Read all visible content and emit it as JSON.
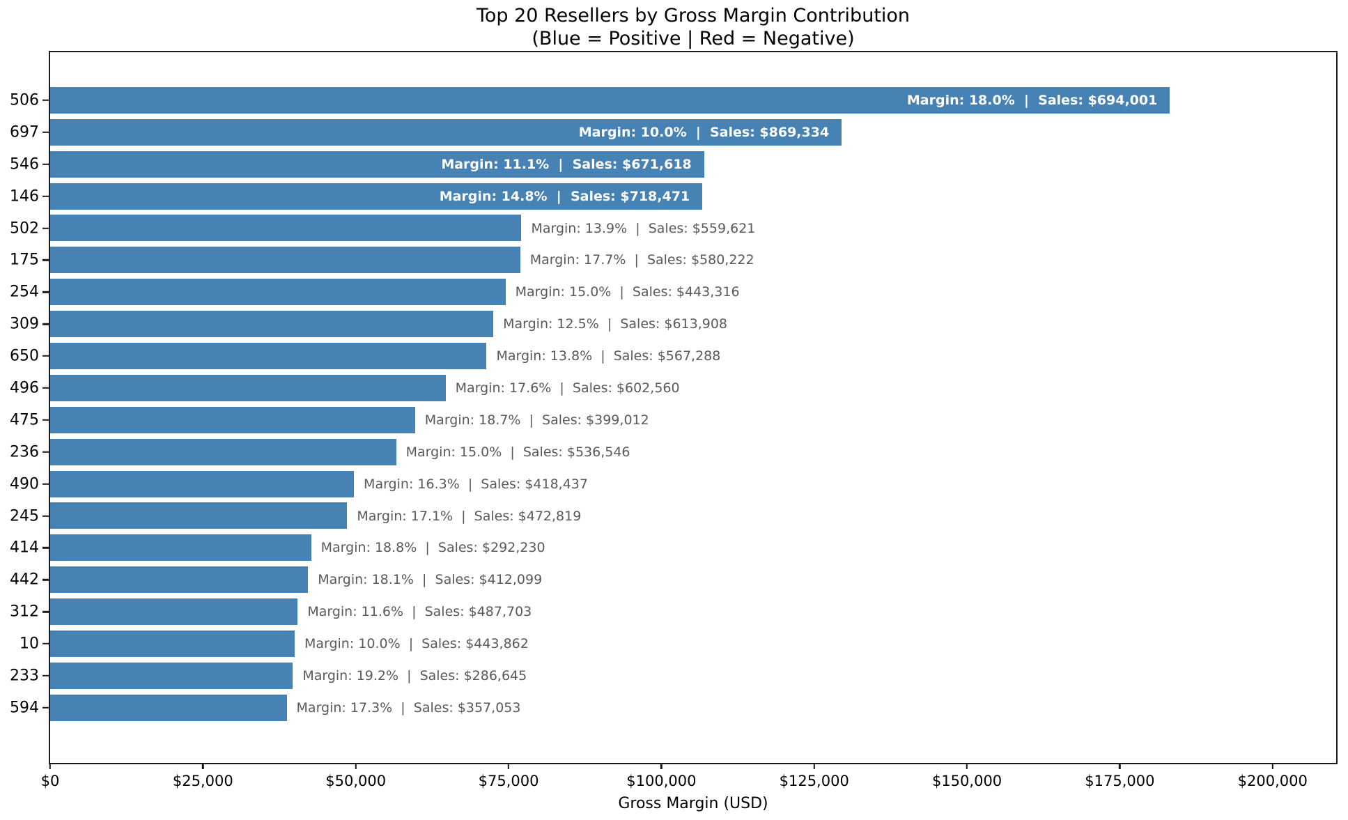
{
  "title": {
    "line1": "Top 20 Resellers by Gross Margin Contribution",
    "line2": "(Blue = Positive | Red = Negative)"
  },
  "colors": {
    "positive_bar": "#4682b4",
    "inside_label": "#ffffff",
    "outside_label": "#595959",
    "axis": "#1a1a1a"
  },
  "chart_data": {
    "type": "bar",
    "orientation": "horizontal",
    "title": "Top 20 Resellers by Gross Margin Contribution",
    "subtitle": "(Blue = Positive | Red = Negative)",
    "xlabel": "Gross Margin (USD)",
    "ylabel": "",
    "xlim": [
      0,
      210400
    ],
    "grid": false,
    "legend": false,
    "x_ticks": [
      {
        "value": 0,
        "label": "$0"
      },
      {
        "value": 25000,
        "label": "$25,000"
      },
      {
        "value": 50000,
        "label": "$50,000"
      },
      {
        "value": 75000,
        "label": "$75,000"
      },
      {
        "value": 100000,
        "label": "$100,000"
      },
      {
        "value": 125000,
        "label": "$125,000"
      },
      {
        "value": 150000,
        "label": "$150,000"
      },
      {
        "value": 175000,
        "label": "$175,000"
      },
      {
        "value": 200000,
        "label": "$200,000"
      }
    ],
    "label_format": "Margin: {margin_pct}  |  Sales: {sales}",
    "bars": [
      {
        "reseller_id": "506",
        "gross_margin": 183200,
        "margin_pct": "18.0%",
        "sales": "$694,001",
        "label_inside": true
      },
      {
        "reseller_id": "697",
        "gross_margin": 129500,
        "margin_pct": "10.0%",
        "sales": "$869,334",
        "label_inside": true
      },
      {
        "reseller_id": "546",
        "gross_margin": 107000,
        "margin_pct": "11.1%",
        "sales": "$671,618",
        "label_inside": true
      },
      {
        "reseller_id": "146",
        "gross_margin": 106700,
        "margin_pct": "14.8%",
        "sales": "$718,471",
        "label_inside": true
      },
      {
        "reseller_id": "502",
        "gross_margin": 77100,
        "margin_pct": "13.9%",
        "sales": "$559,621",
        "label_inside": false
      },
      {
        "reseller_id": "175",
        "gross_margin": 76900,
        "margin_pct": "17.7%",
        "sales": "$580,222",
        "label_inside": false
      },
      {
        "reseller_id": "254",
        "gross_margin": 74500,
        "margin_pct": "15.0%",
        "sales": "$443,316",
        "label_inside": false
      },
      {
        "reseller_id": "309",
        "gross_margin": 72500,
        "margin_pct": "12.5%",
        "sales": "$613,908",
        "label_inside": false
      },
      {
        "reseller_id": "650",
        "gross_margin": 71400,
        "margin_pct": "13.8%",
        "sales": "$567,288",
        "label_inside": false
      },
      {
        "reseller_id": "496",
        "gross_margin": 64700,
        "margin_pct": "17.6%",
        "sales": "$602,560",
        "label_inside": false
      },
      {
        "reseller_id": "475",
        "gross_margin": 59700,
        "margin_pct": "18.7%",
        "sales": "$399,012",
        "label_inside": false
      },
      {
        "reseller_id": "236",
        "gross_margin": 56600,
        "margin_pct": "15.0%",
        "sales": "$536,546",
        "label_inside": false
      },
      {
        "reseller_id": "490",
        "gross_margin": 49700,
        "margin_pct": "16.3%",
        "sales": "$418,437",
        "label_inside": false
      },
      {
        "reseller_id": "245",
        "gross_margin": 48600,
        "margin_pct": "17.1%",
        "sales": "$472,819",
        "label_inside": false
      },
      {
        "reseller_id": "414",
        "gross_margin": 42700,
        "margin_pct": "18.8%",
        "sales": "$292,230",
        "label_inside": false
      },
      {
        "reseller_id": "442",
        "gross_margin": 42200,
        "margin_pct": "18.1%",
        "sales": "$412,099",
        "label_inside": false
      },
      {
        "reseller_id": "312",
        "gross_margin": 40500,
        "margin_pct": "11.6%",
        "sales": "$487,703",
        "label_inside": false
      },
      {
        "reseller_id": "10",
        "gross_margin": 40000,
        "margin_pct": "10.0%",
        "sales": "$443,862",
        "label_inside": false
      },
      {
        "reseller_id": "233",
        "gross_margin": 39700,
        "margin_pct": "19.2%",
        "sales": "$286,645",
        "label_inside": false
      },
      {
        "reseller_id": "594",
        "gross_margin": 38700,
        "margin_pct": "17.3%",
        "sales": "$357,053",
        "label_inside": false
      }
    ]
  }
}
